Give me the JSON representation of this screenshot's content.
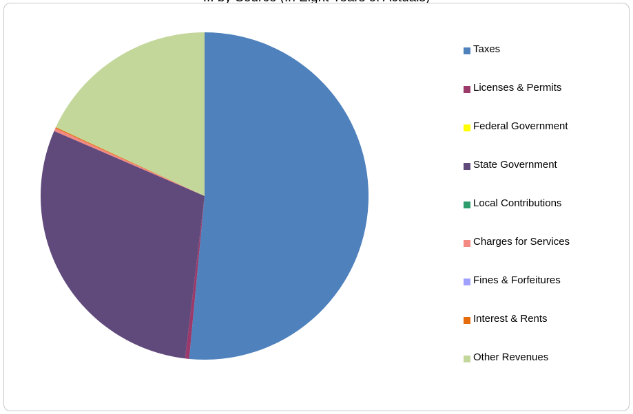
{
  "chart_data": {
    "type": "pie",
    "title": "... by Source (In Eight Years of Actuals)",
    "legend_position": "right",
    "slices": [
      {
        "name": "Taxes",
        "value": 51.5,
        "color": "#4f81bd"
      },
      {
        "name": "Licenses & Permits",
        "value": 0.4,
        "color": "#9b3a6a"
      },
      {
        "name": "Federal Government",
        "value": 0.0,
        "color": "#ffff00"
      },
      {
        "name": "State Government",
        "value": 29.6,
        "color": "#604a7b"
      },
      {
        "name": "Local Contributions",
        "value": 0.0,
        "color": "#2e9d6e"
      },
      {
        "name": "Charges for Services",
        "value": 0.3,
        "color": "#f28983"
      },
      {
        "name": "Fines & Forfeitures",
        "value": 0.0,
        "color": "#a0a0ff"
      },
      {
        "name": "Interest & Rents",
        "value": 0.1,
        "color": "#e46c0a"
      },
      {
        "name": "Other Revenues",
        "value": 18.1,
        "color": "#c4d79b"
      }
    ]
  }
}
